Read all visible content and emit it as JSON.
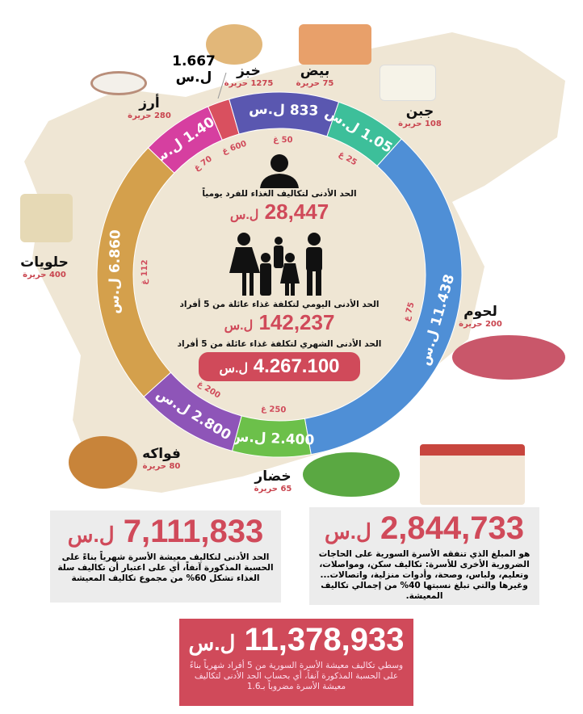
{
  "colors": {
    "accent": "#d04a5a",
    "map": "#efe6d4",
    "grey_box": "#ececec"
  },
  "items": [
    {
      "key": "rice",
      "name": "أرز",
      "calories": "280 حريرة",
      "price": "1.400 ل.س",
      "grams": "70 غ",
      "color": "#d63fa0",
      "start": 314,
      "end": 337
    },
    {
      "key": "bread",
      "name": "خبز",
      "calories": "1275 حريرة",
      "price": "1.667 ل.س",
      "grams": "600 غ",
      "color": "#d9505f",
      "start": 337,
      "end": 344
    },
    {
      "key": "eggs",
      "name": "بيض",
      "calories": "75 حريرة",
      "price": "833 ل.س",
      "grams": "50 غ",
      "color": "#5a57b0",
      "start": 344,
      "end": 379
    },
    {
      "key": "cheese",
      "name": "جبن",
      "calories": "108 حريرة",
      "price": "1.050 ل.س",
      "grams": "25 غ",
      "color": "#3dbf9a",
      "start": 19,
      "end": 42
    },
    {
      "key": "meat",
      "name": "لحوم",
      "calories": "200 حريرة",
      "price": "11.438 ل.س",
      "grams": "75 غ",
      "color": "#4f8fd6",
      "start": 42,
      "end": 170
    },
    {
      "key": "vegetables",
      "name": "خضار",
      "calories": "65 حريرة",
      "price": "2.400 ل.س",
      "grams": "250 غ",
      "color": "#6cc04a",
      "start": 170,
      "end": 195
    },
    {
      "key": "fruit",
      "name": "فواكه",
      "calories": "80 حريرة",
      "price": "2.800 ل.س",
      "grams": "200 غ",
      "color": "#8e55b8",
      "start": 195,
      "end": 228
    },
    {
      "key": "sweets",
      "name": "حلويات",
      "calories": "400 حريرة",
      "price": "6.860 ل.س",
      "grams": "112 غ",
      "color": "#d4a04c",
      "start": 228,
      "end": 314
    }
  ],
  "center": {
    "person_label": "الحد الأدنى لتكاليف الغذاء للفرد يومياً",
    "person_value": "28,447",
    "currency": "ل.س",
    "family_daily_label": "الحد الأدنى اليومي لتكلفة غذاء عائلة من 5 أفراد",
    "family_daily_value": "142,237",
    "family_monthly_label": "الحد الأدنى الشهري لتكلفة غذاء عائلة من 5 أفراد",
    "family_monthly_value": "4.267.100"
  },
  "other_needs": {
    "value": "2,844,733",
    "currency": "ل.س",
    "text": "هو المبلغ الذي تنفقه الأسرة السورية على الحاجات الضرورية الأخرى للأسرة: تكاليف سكن، ومواصلات، وتعليم، ولباس، وصحة، وأدوات منزلية، واتصالات... وغيرها والتي تبلغ نسبتها 40% من إجمالي تكاليف المعيشة."
  },
  "min_living": {
    "value": "7,111,833",
    "currency": "ل.س",
    "text": "الحد الأدنى لتكاليف معيشة الأسرة شهرياً بناءً على الحسبة المذكورة آنفاً، أي على اعتبار أن تكاليف سلة الغذاء تشكل 60% من مجموع تكاليف المعيشة"
  },
  "avg_living": {
    "value": "11,378,933",
    "currency": "ل.س",
    "text": "وسطي تكاليف معيشة الأسرة السورية من 5 أفراد شهرياً بناءً على الحسبة المذكورة آنفاً، أي بحساب الحد الأدنى لتكاليف معيشة الأسرة مضروباً بـ1.6"
  }
}
